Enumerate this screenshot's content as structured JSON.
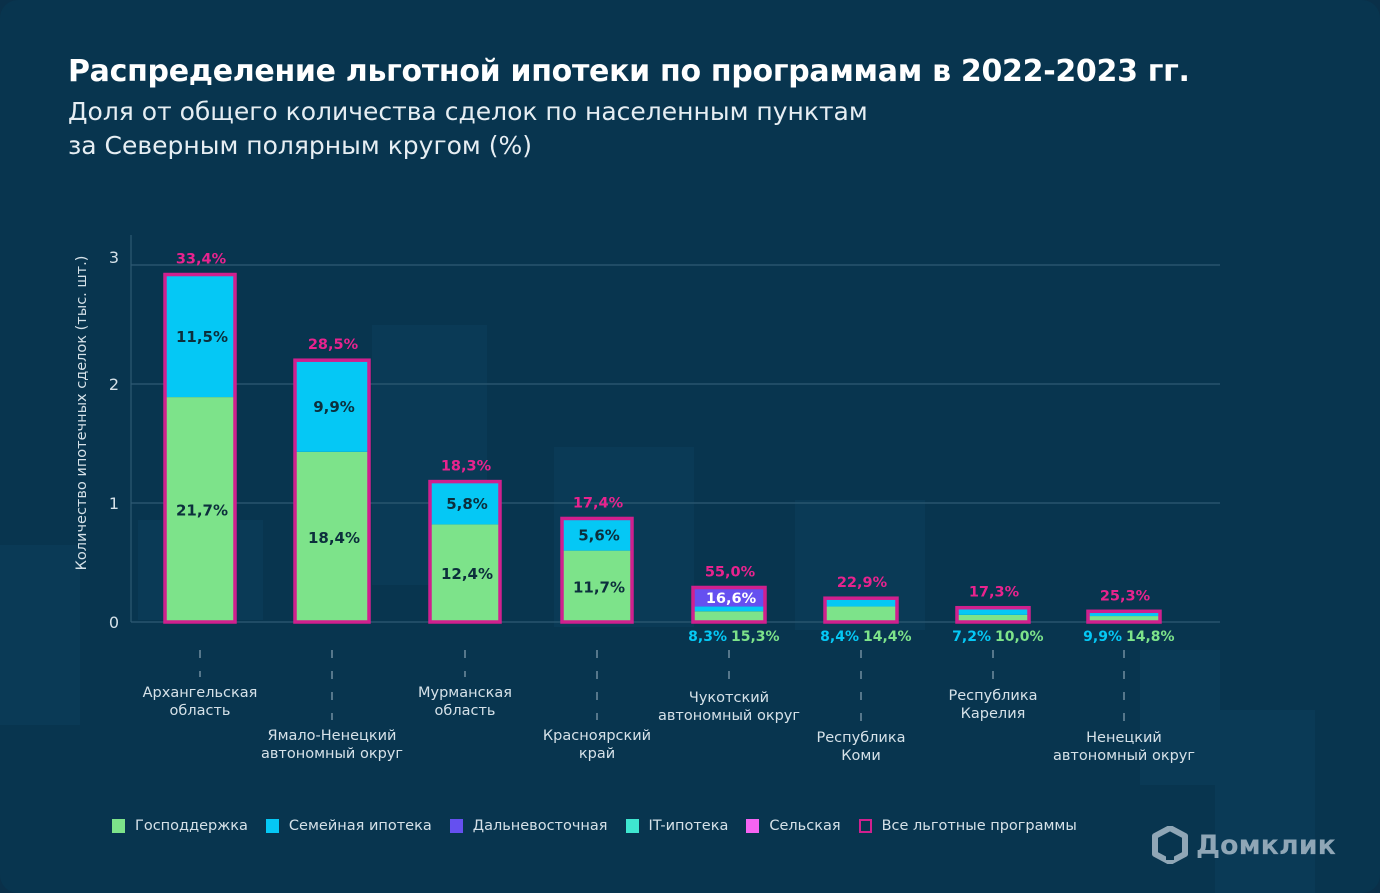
{
  "header": {
    "title": "Распределение льготной ипотеки по программам в 2022-2023 гг.",
    "subtitle_line1": "Доля от общего количества сделок по населенным пунктам",
    "subtitle_line2": "за Северным полярным кругом (%)"
  },
  "logo": {
    "text": "Домклик",
    "icon": "house-icon"
  },
  "colors": {
    "background": "#08354f",
    "gospodderzhka": "#7de38a",
    "semeynaya": "#05c8f5",
    "dalnevostochnaya": "#6550f0",
    "it": "#3fe6d0",
    "selskaya": "#f564f2",
    "all_programs_border": "#d0208e",
    "total_label": "#e8238e",
    "grid": "#2e5a73",
    "axis_text": "#d5e1e8"
  },
  "chart_data": {
    "type": "bar",
    "stacked": true,
    "title": "Распределение льготной ипотеки по программам в 2022-2023 гг.",
    "ylabel": "Количество ипотечных сделок (тыс. шт.)",
    "xlabel": "",
    "ylim": [
      0,
      3
    ],
    "yticks": [
      "0",
      "1",
      "2",
      "3"
    ],
    "grid": true,
    "legend_position": "bottom",
    "categories": [
      [
        "Архангельская",
        "область"
      ],
      [
        "Ямало-Ненецкий",
        "автономный округ"
      ],
      [
        "Мурманская",
        "область"
      ],
      [
        "Красноярский",
        "край"
      ],
      [
        "Чукотский",
        "автономный округ"
      ],
      [
        "Республика",
        "Коми"
      ],
      [
        "Республика",
        "Карелия"
      ],
      [
        "Ненецкий",
        "автономный округ"
      ]
    ],
    "series": [
      {
        "name": "Господдержка",
        "key": "gospodderzhka",
        "values": [
          1.89,
          1.43,
          0.82,
          0.6,
          0.09,
          0.13,
          0.06,
          0.05
        ],
        "labels": [
          "21,7%",
          "18,4%",
          "12,4%",
          "11,7%",
          "15,3%",
          "14,4%",
          "10,0%",
          "14,8%"
        ]
      },
      {
        "name": "Семейная ипотека",
        "key": "semeynaya",
        "values": [
          1.03,
          0.77,
          0.36,
          0.27,
          0.04,
          0.07,
          0.06,
          0.04
        ],
        "labels": [
          "11,5%",
          "9,9%",
          "5,8%",
          "5,6%",
          "8,3%",
          "8,4%",
          "7,2%",
          "9,9%"
        ]
      },
      {
        "name": "Дальневосточная",
        "key": "dalnevostochnaya",
        "values": [
          0,
          0,
          0,
          0,
          0.16,
          0,
          0,
          0
        ],
        "labels": [
          "",
          "",
          "",
          "",
          "16,6%",
          "",
          "",
          ""
        ]
      },
      {
        "name": "IT-ипотека",
        "key": "it",
        "values": [
          0,
          0,
          0,
          0,
          0,
          0,
          0,
          0
        ],
        "labels": [
          "",
          "",
          "",
          "",
          "",
          "",
          "",
          ""
        ]
      },
      {
        "name": "Сельская",
        "key": "selskaya",
        "values": [
          0,
          0,
          0,
          0,
          0,
          0,
          0,
          0
        ],
        "labels": [
          "",
          "",
          "",
          "",
          "",
          "",
          "",
          ""
        ]
      }
    ],
    "totals": {
      "name": "Все льготные программы",
      "labels": [
        "33,4%",
        "28,5%",
        "18,3%",
        "17,4%",
        "55,0%",
        "22,9%",
        "17,3%",
        "25,3%"
      ]
    }
  },
  "legend": [
    {
      "label": "Господдержка",
      "key": "gospodderzhka"
    },
    {
      "label": "Семейная ипотека",
      "key": "semeynaya"
    },
    {
      "label": "Дальневосточная",
      "key": "dalnevostochnaya"
    },
    {
      "label": "IT-ипотека",
      "key": "it"
    },
    {
      "label": "Сельская",
      "key": "selskaya"
    },
    {
      "label": "Все льготные программы",
      "key": "all",
      "outline": true
    }
  ]
}
